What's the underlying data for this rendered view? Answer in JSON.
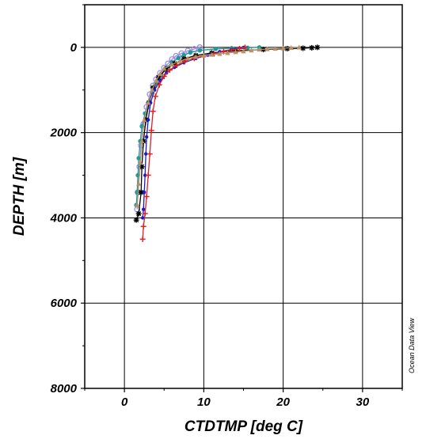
{
  "chart_data": {
    "type": "scatter",
    "xlabel": "CTDTMP [deg C]",
    "ylabel": "DEPTH [m]",
    "xlim": [
      -5,
      35
    ],
    "ylim": [
      -1000,
      8000
    ],
    "y_inverted": true,
    "x_ticks": [
      0,
      10,
      20,
      30
    ],
    "y_ticks": [
      0,
      2000,
      4000,
      6000,
      8000
    ],
    "grid": true,
    "watermark": "Ocean Data View",
    "series": [
      {
        "color": "#9B8CE8",
        "marker": "circle-open",
        "points": [
          [
            9.5,
            0
          ],
          [
            8.8,
            40
          ],
          [
            8.0,
            80
          ],
          [
            7.2,
            140
          ],
          [
            6.5,
            200
          ],
          [
            6.0,
            280
          ],
          [
            5.5,
            380
          ],
          [
            5.0,
            480
          ],
          [
            4.5,
            600
          ],
          [
            4.0,
            750
          ],
          [
            3.6,
            900
          ],
          [
            3.2,
            1100
          ],
          [
            2.8,
            1400
          ],
          [
            2.4,
            1800
          ],
          [
            2.1,
            2300
          ],
          [
            1.9,
            2800
          ],
          [
            1.7,
            3400
          ],
          [
            1.6,
            3800
          ]
        ]
      },
      {
        "color": "#1F9A94",
        "marker": "circle",
        "points": [
          [
            17,
            0
          ],
          [
            15.5,
            10
          ],
          [
            13.5,
            20
          ],
          [
            11.5,
            35
          ],
          [
            9.5,
            70
          ],
          [
            8.3,
            120
          ],
          [
            7.5,
            180
          ],
          [
            6.8,
            250
          ],
          [
            6.0,
            350
          ],
          [
            5.3,
            480
          ],
          [
            4.6,
            650
          ],
          [
            4.0,
            850
          ],
          [
            3.5,
            1050
          ],
          [
            3.0,
            1300
          ],
          [
            2.6,
            1550
          ],
          [
            2.2,
            1850
          ],
          [
            2.0,
            2200
          ],
          [
            1.8,
            2600
          ],
          [
            1.7,
            3000
          ],
          [
            1.6,
            3400
          ],
          [
            1.5,
            3700
          ]
        ]
      },
      {
        "color": "#000000",
        "marker": "star",
        "points": [
          [
            24.3,
            0
          ],
          [
            23.6,
            10
          ],
          [
            22.5,
            20
          ],
          [
            20.5,
            30
          ],
          [
            17.5,
            50
          ],
          [
            14,
            80
          ],
          [
            11,
            130
          ],
          [
            9.0,
            190
          ],
          [
            7.5,
            270
          ],
          [
            6.3,
            380
          ],
          [
            5.2,
            520
          ],
          [
            4.3,
            700
          ],
          [
            3.6,
            950
          ],
          [
            3.1,
            1300
          ],
          [
            2.7,
            1700
          ],
          [
            2.4,
            2200
          ],
          [
            2.2,
            2800
          ],
          [
            2.1,
            3400
          ],
          [
            1.8,
            3900
          ],
          [
            1.5,
            4050
          ]
        ]
      },
      {
        "color": "#1A1ACC",
        "marker": "dot",
        "points": [
          [
            15,
            0
          ],
          [
            13.5,
            50
          ],
          [
            12,
            100
          ],
          [
            10.5,
            180
          ],
          [
            9,
            260
          ],
          [
            7.5,
            360
          ],
          [
            6.3,
            470
          ],
          [
            5.3,
            600
          ],
          [
            4.5,
            780
          ],
          [
            3.8,
            1000
          ],
          [
            3.3,
            1300
          ],
          [
            3.0,
            1700
          ],
          [
            2.8,
            2100
          ],
          [
            2.7,
            2500
          ],
          [
            2.6,
            3000
          ],
          [
            2.5,
            3400
          ],
          [
            2.4,
            3800
          ],
          [
            2.3,
            4000
          ]
        ]
      },
      {
        "color": "#E02020",
        "marker": "plus",
        "points": [
          [
            15.2,
            0
          ],
          [
            14.5,
            30
          ],
          [
            13.5,
            60
          ],
          [
            12.5,
            100
          ],
          [
            11.3,
            150
          ],
          [
            10,
            200
          ],
          [
            8.8,
            260
          ],
          [
            7.6,
            330
          ],
          [
            6.6,
            420
          ],
          [
            5.7,
            530
          ],
          [
            5.0,
            680
          ],
          [
            4.4,
            880
          ],
          [
            3.9,
            1150
          ],
          [
            3.6,
            1500
          ],
          [
            3.4,
            1950
          ],
          [
            3.2,
            2500
          ],
          [
            3.0,
            3000
          ],
          [
            2.8,
            3500
          ],
          [
            2.6,
            3900
          ],
          [
            2.4,
            4200
          ],
          [
            2.3,
            4500
          ]
        ]
      },
      {
        "color": "#B8916B",
        "marker": "triangle",
        "points": [
          [
            22,
            0
          ],
          [
            21,
            10
          ],
          [
            20,
            20
          ],
          [
            19,
            30
          ],
          [
            18,
            40
          ],
          [
            17,
            50
          ],
          [
            16,
            70
          ],
          [
            15,
            90
          ],
          [
            14,
            110
          ],
          [
            13,
            130
          ],
          [
            12,
            150
          ],
          [
            11,
            170
          ],
          [
            10,
            190
          ],
          [
            9,
            220
          ],
          [
            8,
            260
          ],
          [
            7,
            320
          ],
          [
            6,
            400
          ],
          [
            5,
            500
          ],
          [
            4.5,
            620
          ],
          [
            4,
            780
          ],
          [
            3.5,
            1000
          ],
          [
            3.0,
            1300
          ],
          [
            2.5,
            1700
          ],
          [
            2.2,
            2200
          ],
          [
            2.0,
            2700
          ],
          [
            1.8,
            3200
          ],
          [
            1.6,
            3700
          ]
        ]
      }
    ]
  }
}
